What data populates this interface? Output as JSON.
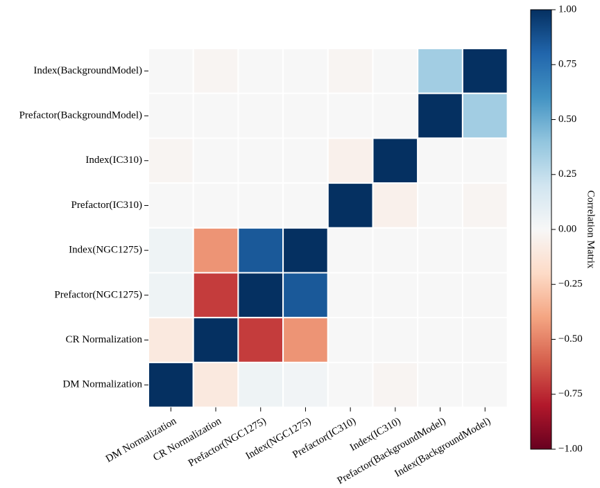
{
  "chart_data": {
    "type": "heatmap",
    "x_labels": [
      "DM Normalization",
      "CR Normalization",
      "Prefactor(NGC1275)",
      "Index(NGC1275)",
      "Prefactor(IC310)",
      "Index(IC310)",
      "Prefactor(BackgroundModel)",
      "Index(BackgroundModel)"
    ],
    "y_labels": [
      "Index(BackgroundModel)",
      "Prefactor(BackgroundModel)",
      "Index(IC310)",
      "Prefactor(IC310)",
      "Index(NGC1275)",
      "Prefactor(NGC1275)",
      "CR Normalization",
      "DM Normalization"
    ],
    "values": [
      [
        0.0,
        -0.02,
        0.0,
        0.0,
        -0.02,
        0.0,
        0.35,
        1.0
      ],
      [
        0.0,
        0.0,
        0.0,
        0.0,
        0.0,
        0.0,
        1.0,
        0.35
      ],
      [
        -0.02,
        0.0,
        0.0,
        0.0,
        -0.05,
        1.0,
        0.0,
        0.0
      ],
      [
        0.0,
        0.0,
        0.0,
        0.0,
        1.0,
        -0.05,
        0.0,
        -0.02
      ],
      [
        0.05,
        -0.45,
        0.85,
        1.0,
        0.0,
        0.0,
        0.0,
        0.0
      ],
      [
        0.05,
        -0.7,
        1.0,
        0.85,
        0.0,
        0.0,
        0.0,
        0.0
      ],
      [
        -0.1,
        1.0,
        -0.7,
        -0.45,
        0.0,
        0.0,
        0.0,
        0.0
      ],
      [
        1.0,
        -0.1,
        0.05,
        0.03,
        0.0,
        -0.02,
        0.0,
        0.0
      ]
    ],
    "colorbar": {
      "label": "Correlation Matrix",
      "range": [
        -1.0,
        1.0
      ],
      "ticks": [
        1.0,
        0.75,
        0.5,
        0.25,
        0.0,
        -0.25,
        -0.5,
        -0.75,
        -1.0
      ],
      "tick_labels": [
        "1.00",
        "0.75",
        "0.50",
        "0.25",
        "0.00",
        "−0.25",
        "−0.50",
        "−0.75",
        "−1.00"
      ],
      "colormap": "RdBu",
      "stops": [
        "#67001f",
        "#b2182b",
        "#d6604d",
        "#f4a582",
        "#fddbc7",
        "#f7f7f7",
        "#d1e5f0",
        "#92c5de",
        "#4393c3",
        "#2166ac",
        "#053061"
      ]
    },
    "grid_line_color": "#ffffff"
  }
}
